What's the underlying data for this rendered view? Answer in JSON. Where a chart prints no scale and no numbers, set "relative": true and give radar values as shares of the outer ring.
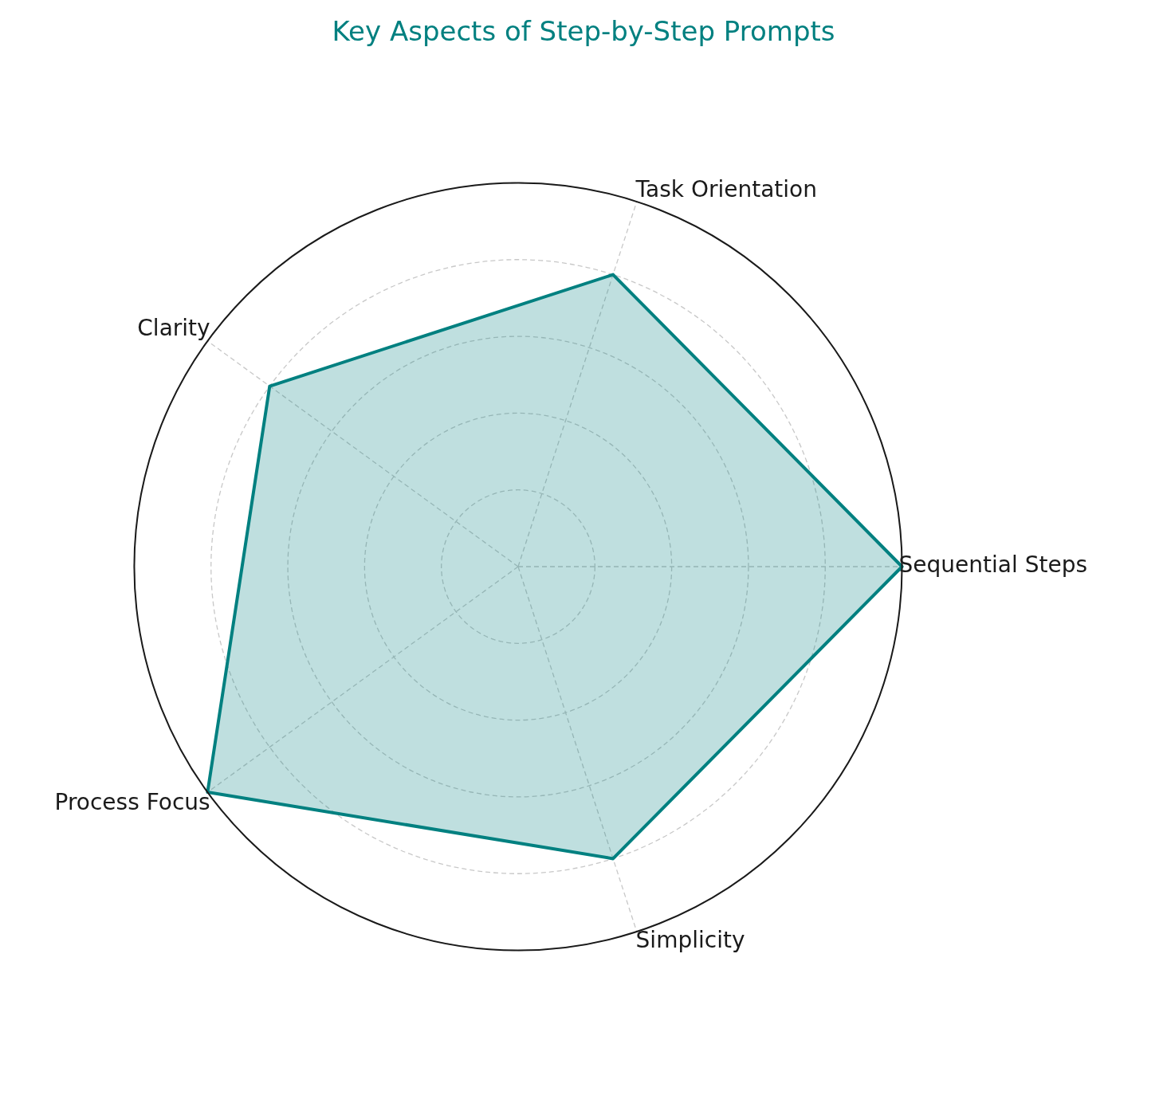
{
  "chart_data": {
    "type": "radar",
    "title": "Key Aspects of Step-by-Step Prompts",
    "categories": [
      "Sequential Steps",
      "Simplicity",
      "Process Focus",
      "Clarity",
      "Task Orientation"
    ],
    "series": [
      {
        "color": "#008080",
        "values": [
          1,
          0.8,
          1,
          0.8,
          0.8
        ]
      }
    ],
    "relative": true,
    "grid": true,
    "marker": "none"
  }
}
